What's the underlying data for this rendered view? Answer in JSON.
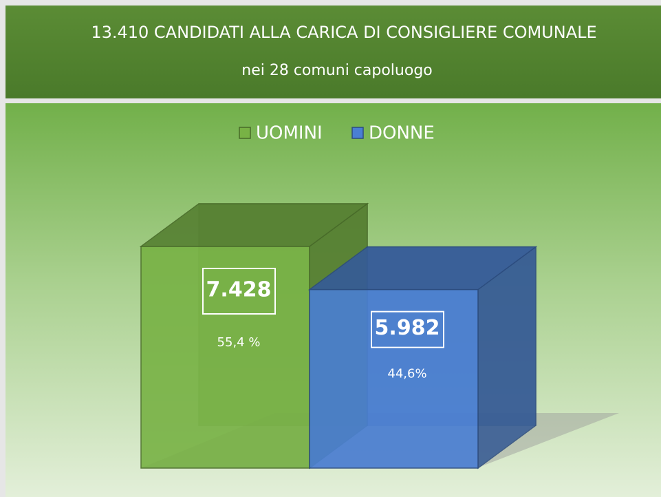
{
  "chart_data": {
    "type": "bar3d",
    "title": "13.410 CANDIDATI ALLA CARICA DI CONSIGLIERE COMUNALE",
    "subtitle": "nei 28 comuni capoluogo",
    "categories": [
      "UOMINI",
      "DONNE"
    ],
    "values": [
      7428,
      5982
    ],
    "value_labels": [
      "7.428",
      "5.982"
    ],
    "share_labels": [
      "55,4 %",
      "44,6%"
    ],
    "colors": [
      "#78b245",
      "#4a7fd4"
    ],
    "legend": "top"
  }
}
